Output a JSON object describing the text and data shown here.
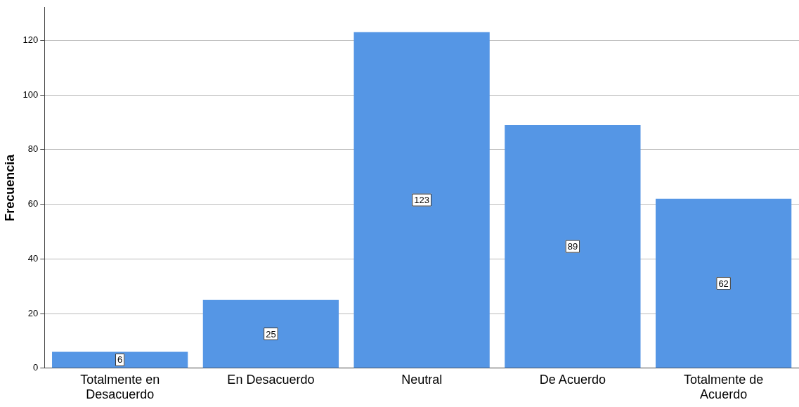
{
  "chart_data": {
    "type": "bar",
    "ylabel": "Frecuencia",
    "categories": [
      "Totalmente en Desacuerdo",
      "En Desacuerdo",
      "Neutral",
      "De Acuerdo",
      "Totalmente de Acuerdo"
    ],
    "values": [
      6,
      25,
      123,
      89,
      62
    ],
    "color": "#5596e5",
    "ylim": [
      0,
      132
    ],
    "yticks": [
      0,
      20,
      40,
      60,
      80,
      100,
      120
    ],
    "grid": "y",
    "data_labels": true,
    "legend": false
  }
}
